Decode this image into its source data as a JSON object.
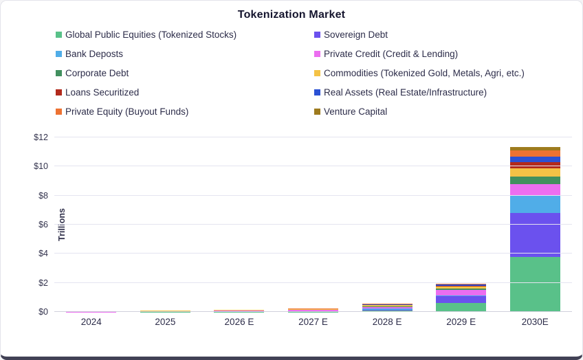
{
  "title": "Tokenization Market",
  "chart_data": {
    "type": "bar",
    "stacked": true,
    "title": "Tokenization Market",
    "ylabel": "Trillions",
    "units": "USD trillions",
    "ylim": [
      0,
      12
    ],
    "grid": "horizontal",
    "legend_position": "top-two-columns",
    "yticks": [
      {
        "value": 0,
        "label": "$0"
      },
      {
        "value": 2,
        "label": "$2"
      },
      {
        "value": 4,
        "label": "$4"
      },
      {
        "value": 6,
        "label": "$6"
      },
      {
        "value": 8,
        "label": "$8"
      },
      {
        "value": 10,
        "label": "$10"
      },
      {
        "value": 12,
        "label": "$12"
      }
    ],
    "categories": [
      "2024",
      "2025",
      "2026 E",
      "2027 E",
      "2028 E",
      "2029 E",
      "2030E"
    ],
    "series": [
      {
        "name": "Global Public Equities (Tokenized Stocks)",
        "color": "#59C189",
        "values": [
          0.003,
          0.005,
          0.01,
          0.02,
          0.08,
          0.6,
          3.8
        ]
      },
      {
        "name": "Sovereign Debt",
        "color": "#6B51EE",
        "values": [
          0.002,
          0.004,
          0.03,
          0.04,
          0.08,
          0.5,
          3.0
        ]
      },
      {
        "name": "Bank Deposts",
        "color": "#50ADE8",
        "values": [
          0.001,
          0.002,
          0.005,
          0.01,
          0.08,
          0.02,
          1.2
        ]
      },
      {
        "name": "Private Credit (Credit & Lending)",
        "color": "#EC6EF0",
        "values": [
          0.005,
          0.015,
          0.03,
          0.06,
          0.1,
          0.4,
          0.8
        ]
      },
      {
        "name": "Corporate Debt",
        "color": "#42905F",
        "values": [
          0.002,
          0.003,
          0.005,
          0.01,
          0.04,
          0.1,
          0.5
        ]
      },
      {
        "name": "Commodities (Tokenized Gold, Metals, Agri, etc.)",
        "color": "#F4C246",
        "values": [
          0.05,
          0.06,
          0.06,
          0.06,
          0.08,
          0.12,
          0.6
        ]
      },
      {
        "name": "Loans Securitized",
        "color": "#B22A1C",
        "values": [
          0.001,
          0.002,
          0.003,
          0.005,
          0.03,
          0.05,
          0.4
        ]
      },
      {
        "name": "Real Assets (Real Estate/Infrastructure)",
        "color": "#2B51D4",
        "values": [
          0.002,
          0.003,
          0.005,
          0.01,
          0.03,
          0.1,
          0.4
        ]
      },
      {
        "name": "Private Equity (Buyout Funds)",
        "color": "#ED7232",
        "values": [
          0.001,
          0.002,
          0.003,
          0.005,
          0.04,
          0.04,
          0.4
        ]
      },
      {
        "name": "Venture Capital",
        "color": "#9E7B1E",
        "values": [
          0.001,
          0.001,
          0.002,
          0.003,
          0.02,
          0.02,
          0.22
        ]
      }
    ],
    "totals_estimated": [
      0.068,
      0.097,
      0.153,
      0.223,
      0.58,
      1.95,
      11.32
    ]
  },
  "colors": {
    "background": "#ffffff",
    "text": "#2c2c49",
    "title_text": "#15152e",
    "grid": "#e4e4f0",
    "axis_line": "#cfcfdb",
    "card_bottom_edge": "#414155"
  }
}
